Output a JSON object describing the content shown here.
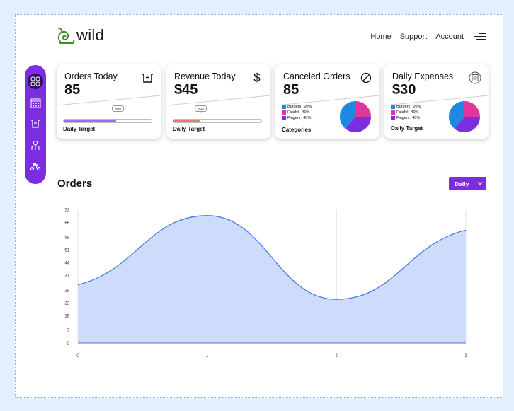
{
  "brand": {
    "name": "wild",
    "logo_icon": "snail-icon",
    "color": "#3a8a2a"
  },
  "nav": {
    "links": [
      "Home",
      "Support",
      "Account"
    ],
    "menu_icon": "menu-icon"
  },
  "sidebar": {
    "items": [
      {
        "icon": "grid-icon",
        "active": true
      },
      {
        "icon": "calendar-icon",
        "active": false
      },
      {
        "icon": "basket-icon",
        "active": false
      },
      {
        "icon": "staff-icon",
        "active": false
      },
      {
        "icon": "delivery-scooter-icon",
        "active": false
      }
    ],
    "color": "#7a2ee0"
  },
  "cards": {
    "orders": {
      "title": "Orders Today",
      "value": "85",
      "icon": "basket-icon",
      "progress_label": "%60",
      "progress": 0.6,
      "target_label": "Daily Target",
      "fill_color": "#9b6cf0"
    },
    "revenue": {
      "title": "Revenue Today",
      "value": "$45",
      "icon": "dollar-icon",
      "progress_label": "%30",
      "progress": 0.3,
      "target_label": "Daily Target",
      "fill_color": "#ec7777"
    },
    "canceled": {
      "title": "Canceled Orders",
      "value": "85",
      "icon": "cancel-icon",
      "legend": [
        {
          "label": "Burgers",
          "pct": "20%",
          "color": "#1e88e5"
        },
        {
          "label": "Falafel",
          "pct": "40%",
          "color": "#e0359c"
        },
        {
          "label": "Fingers",
          "pct": "40%",
          "color": "#7a2ee0"
        }
      ],
      "footer_label": "Categories"
    },
    "expenses": {
      "title": "Daily Expenses",
      "value": "$30",
      "icon": "receipt-icon",
      "legend": [
        {
          "label": "Burgers",
          "pct": "20%",
          "color": "#1e88e5"
        },
        {
          "label": "Falafel",
          "pct": "40%",
          "color": "#e0359c"
        },
        {
          "label": "Fingers",
          "pct": "40%",
          "color": "#7a2ee0"
        }
      ],
      "footer_label": "Daily Target"
    }
  },
  "orders_section": {
    "title": "Orders",
    "period": "Daily",
    "accent": "#7a2ee0"
  },
  "chart_data": {
    "type": "area",
    "x": [
      0,
      1,
      2,
      3
    ],
    "y": [
      32,
      70,
      24,
      62
    ],
    "yticks": [
      0,
      7,
      15,
      22,
      29,
      37,
      44,
      51,
      58,
      66,
      73
    ],
    "xticks": [
      0,
      1,
      2,
      3
    ],
    "ylim": [
      0,
      73
    ],
    "xlim": [
      0,
      3
    ],
    "fill_color": "#cddcfa",
    "line_color": "#3f76e8",
    "grid": "vertical",
    "legend": "none"
  }
}
